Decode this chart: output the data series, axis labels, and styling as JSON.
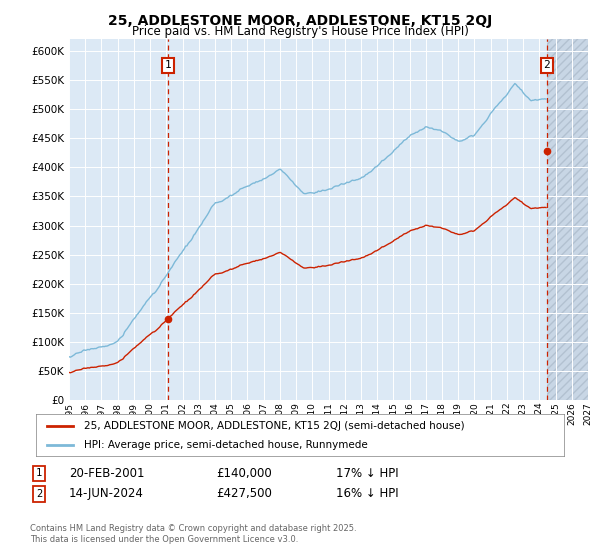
{
  "title": "25, ADDLESTONE MOOR, ADDLESTONE, KT15 2QJ",
  "subtitle": "Price paid vs. HM Land Registry's House Price Index (HPI)",
  "legend_line1": "25, ADDLESTONE MOOR, ADDLESTONE, KT15 2QJ (semi-detached house)",
  "legend_line2": "HPI: Average price, semi-detached house, Runnymede",
  "annotation1_date": "20-FEB-2001",
  "annotation1_price": 140000,
  "annotation1_note": "17% ↓ HPI",
  "annotation2_date": "14-JUN-2024",
  "annotation2_price": 427500,
  "annotation2_note": "16% ↓ HPI",
  "footnote": "Contains HM Land Registry data © Crown copyright and database right 2025.\nThis data is licensed under the Open Government Licence v3.0.",
  "ylim": [
    0,
    620000
  ],
  "xlim_start": 1995.0,
  "xlim_end": 2027.0,
  "hpi_color": "#7db9d8",
  "price_color": "#cc2200",
  "dashed_color": "#cc2200",
  "background_color": "#dce9f5",
  "hatch_color": "#b8c8d8",
  "grid_color": "#ffffff",
  "ann_box_color": "#cc2200",
  "t1": 2001.125,
  "t2": 2024.458,
  "price1": 140000,
  "price2": 427500
}
